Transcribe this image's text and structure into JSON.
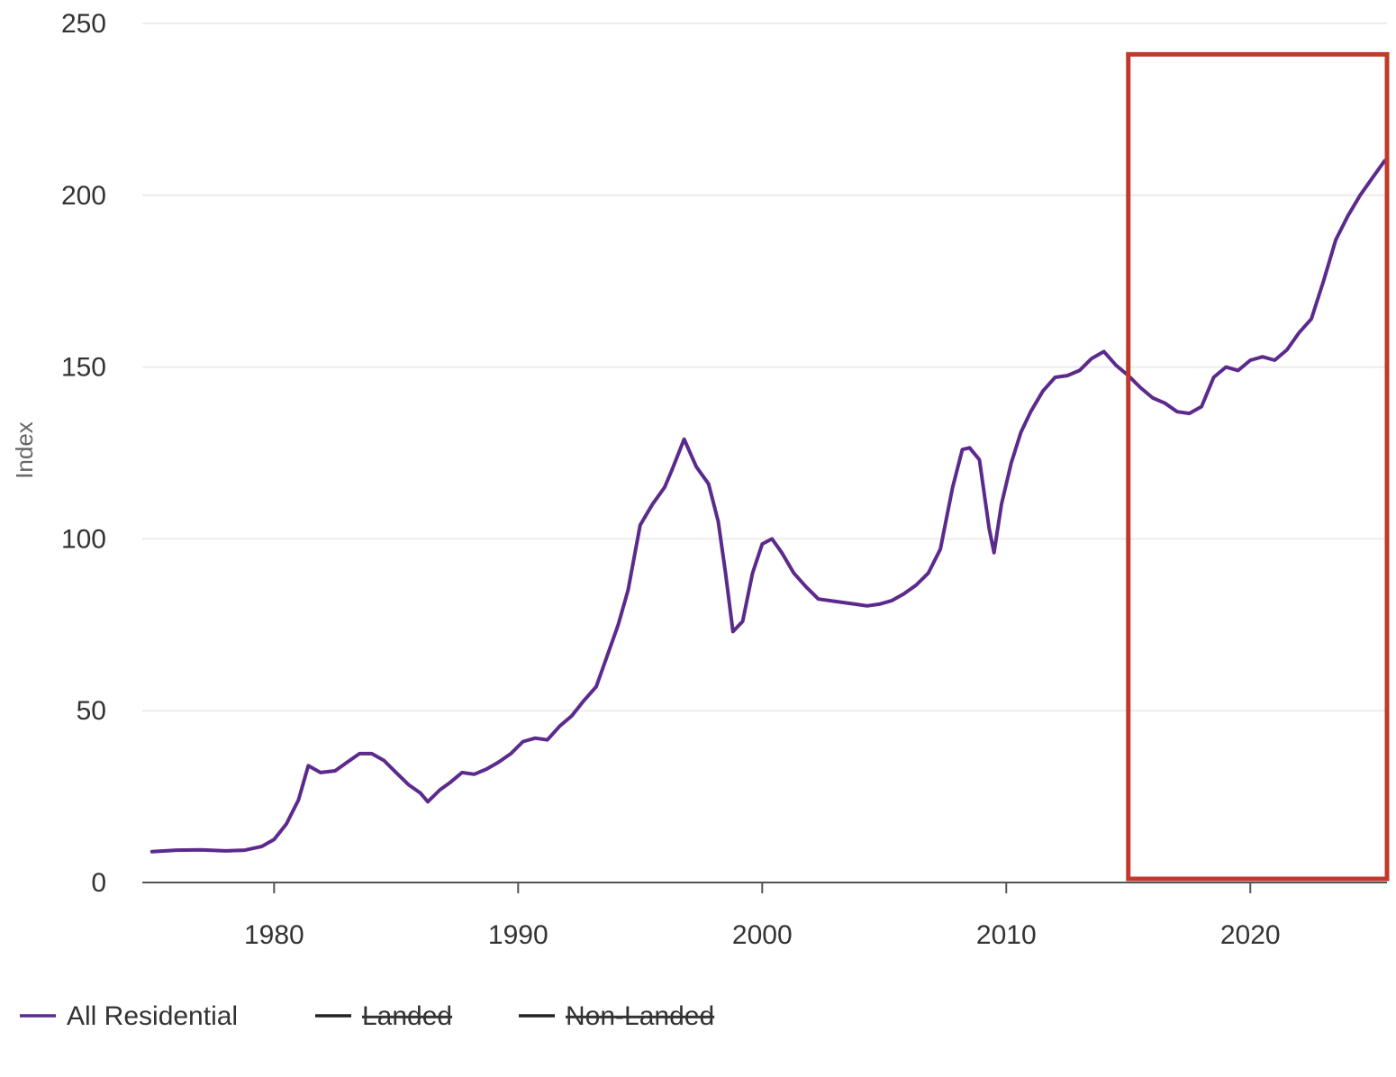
{
  "chart_data": {
    "type": "line",
    "title": "",
    "xlabel": "",
    "ylabel": "Index",
    "xlim": [
      1974.6,
      2025.6
    ],
    "ylim": [
      0,
      250
    ],
    "x_ticks": [
      "1980",
      "1990",
      "2000",
      "2010",
      "2020"
    ],
    "y_ticks": [
      "0",
      "50",
      "100",
      "150",
      "200",
      "250"
    ],
    "grid": "horizontal",
    "legend_position": "bottom-left",
    "colors": {
      "all_residential": "#5b2a8c",
      "highlight_box": "#c0392b",
      "grid": "#ececec",
      "axis": "#555555"
    },
    "legend": [
      {
        "name": "All Residential",
        "color": "#5b2a8c",
        "hidden": false
      },
      {
        "name": "Landed",
        "color": "#222222",
        "hidden": true
      },
      {
        "name": "Non-Landed",
        "color": "#222222",
        "hidden": true
      }
    ],
    "highlight_box": {
      "x_from": 2015.0,
      "x_to": 2025.6,
      "y_from": 0,
      "y_to": 241
    },
    "series": [
      {
        "name": "All Residential",
        "x": [
          1975.0,
          1976.0,
          1977.0,
          1978.0,
          1978.8,
          1979.5,
          1980.0,
          1980.5,
          1981.0,
          1981.4,
          1981.9,
          1982.5,
          1983.0,
          1983.5,
          1984.0,
          1984.5,
          1985.0,
          1985.5,
          1986.0,
          1986.3,
          1986.8,
          1987.2,
          1987.7,
          1988.2,
          1988.7,
          1989.2,
          1989.7,
          1990.2,
          1990.7,
          1991.2,
          1991.7,
          1992.2,
          1992.7,
          1993.2,
          1993.7,
          1994.1,
          1994.5,
          1995.0,
          1995.5,
          1996.0,
          1996.3,
          1996.8,
          1997.3,
          1997.8,
          1998.2,
          1998.5,
          1998.8,
          1999.2,
          1999.6,
          2000.0,
          2000.4,
          2000.8,
          2001.3,
          2001.8,
          2002.3,
          2002.8,
          2003.3,
          2003.8,
          2004.3,
          2004.8,
          2005.3,
          2005.8,
          2006.3,
          2006.8,
          2007.3,
          2007.8,
          2008.2,
          2008.5,
          2008.9,
          2009.3,
          2009.5,
          2009.8,
          2010.2,
          2010.6,
          2011.0,
          2011.5,
          2012.0,
          2012.5,
          2013.0,
          2013.5,
          2014.0,
          2014.5,
          2015.0,
          2015.5,
          2016.0,
          2016.5,
          2017.0,
          2017.5,
          2018.0,
          2018.5,
          2019.0,
          2019.5,
          2020.0,
          2020.5,
          2021.0,
          2021.5,
          2022.0,
          2022.5,
          2023.0,
          2023.5,
          2024.0,
          2024.5,
          2025.0,
          2025.5
        ],
        "values": [
          9.0,
          9.4,
          9.5,
          9.2,
          9.4,
          10.5,
          12.5,
          17.0,
          24.0,
          34.0,
          32.0,
          32.5,
          35.0,
          37.5,
          37.5,
          35.5,
          32.0,
          28.5,
          26.0,
          23.5,
          27.0,
          29.0,
          32.0,
          31.5,
          33.0,
          35.0,
          37.5,
          41.0,
          42.0,
          41.5,
          45.5,
          48.5,
          53.0,
          57.0,
          67.0,
          75.0,
          85.0,
          104.0,
          110.0,
          115.0,
          120.0,
          129.0,
          121.0,
          116.0,
          105.0,
          90.0,
          73.0,
          76.0,
          90.0,
          98.5,
          100.0,
          96.0,
          90.0,
          86.0,
          82.5,
          82.0,
          81.5,
          81.0,
          80.5,
          81.0,
          82.0,
          84.0,
          86.5,
          90.0,
          97.0,
          115.0,
          126.0,
          126.5,
          123.0,
          103.0,
          96.0,
          110.0,
          122.0,
          131.0,
          137.0,
          143.0,
          147.0,
          147.5,
          149.0,
          152.5,
          154.5,
          150.5,
          147.5,
          144.0,
          141.0,
          139.5,
          137.0,
          136.5,
          138.5,
          147.0,
          150.0,
          149.0,
          152.0,
          153.0,
          152.0,
          155.0,
          160.0,
          164.0,
          175.0,
          187.0,
          194.0,
          200.0,
          205.0,
          210.0
        ]
      }
    ]
  }
}
